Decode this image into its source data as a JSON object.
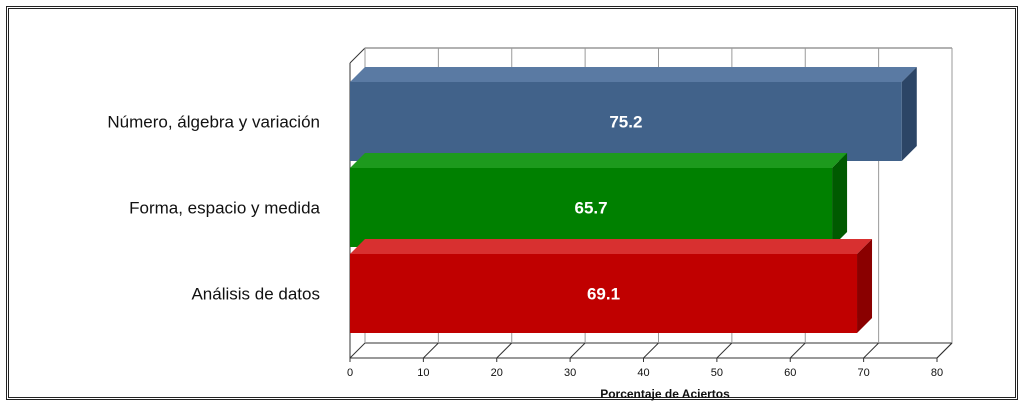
{
  "chart_data": {
    "type": "bar",
    "orientation": "horizontal",
    "categories": [
      "Número, álgebra y variación",
      "Forma, espacio y medida",
      "Análisis de datos"
    ],
    "values": [
      75.2,
      65.7,
      69.1
    ],
    "value_labels": [
      "75.2",
      "65.7",
      "69.1"
    ],
    "colors": [
      "#41628a",
      "#008000",
      "#c00000"
    ],
    "side_colors": [
      "#2c4566",
      "#005a00",
      "#8a0000"
    ],
    "top_colors": [
      "#5a7aa3",
      "#1d9a1d",
      "#d83030"
    ],
    "xlabel": "Porcentaje de Aciertos",
    "xlim": [
      0,
      80
    ],
    "xticks": [
      0,
      10,
      20,
      30,
      40,
      50,
      60,
      70,
      80
    ],
    "xtick_labels": [
      "0",
      "10",
      "20",
      "30",
      "40",
      "50",
      "60",
      "70",
      "80"
    ],
    "grid": true,
    "style": "3d"
  }
}
